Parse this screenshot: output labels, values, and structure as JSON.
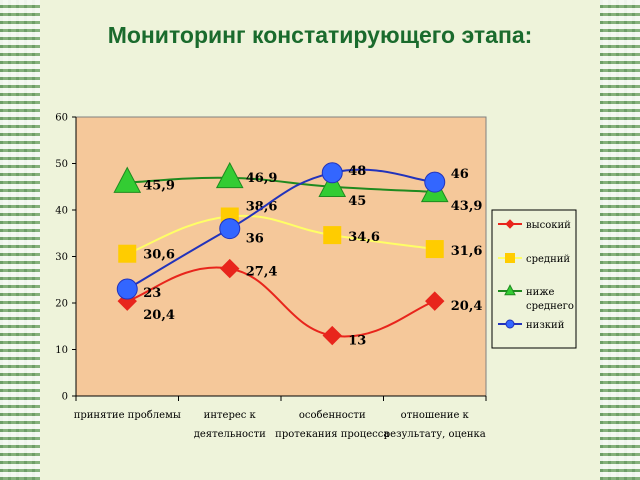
{
  "slide": {
    "title": "Мониторинг констатирующего этапа:"
  },
  "chart_data": {
    "type": "line",
    "smooth": true,
    "categories": [
      [
        "принятие проблемы"
      ],
      [
        "интерес к",
        "деятельности"
      ],
      [
        "особенности",
        "протекания процесса"
      ],
      [
        "отношение к",
        "результату, оценка"
      ]
    ],
    "ylim": [
      0,
      60
    ],
    "yticks": [
      0,
      10,
      20,
      30,
      40,
      50,
      60
    ],
    "grid": false,
    "legend": "right",
    "plot_background": "#f5c89a",
    "series": [
      {
        "name": [
          "высокий"
        ],
        "values": [
          20.4,
          27.4,
          13,
          20.4
        ],
        "labels": [
          "20,4",
          "27,4",
          "13",
          "20,4"
        ],
        "color": "#e8251c",
        "marker": "diamond"
      },
      {
        "name": [
          "средний"
        ],
        "values": [
          30.6,
          38.6,
          34.6,
          31.6
        ],
        "labels": [
          "30,6",
          "38,6",
          "34,6",
          "31,6"
        ],
        "color": "#ffff66",
        "marker_color": "#ffcc00",
        "marker": "square"
      },
      {
        "name": [
          "ниже",
          "среднего"
        ],
        "values": [
          45.9,
          46.9,
          45,
          43.9
        ],
        "labels": [
          "45,9",
          "46,9",
          "45",
          "43,9"
        ],
        "color": "#1f8a1f",
        "marker_color": "#33cc33",
        "marker": "triangle"
      },
      {
        "name": [
          "низкий"
        ],
        "values": [
          23,
          36,
          48,
          46
        ],
        "labels": [
          "23",
          "36",
          "48",
          "46"
        ],
        "color": "#2233bb",
        "marker_color": "#3366ff",
        "marker": "circle"
      }
    ]
  }
}
